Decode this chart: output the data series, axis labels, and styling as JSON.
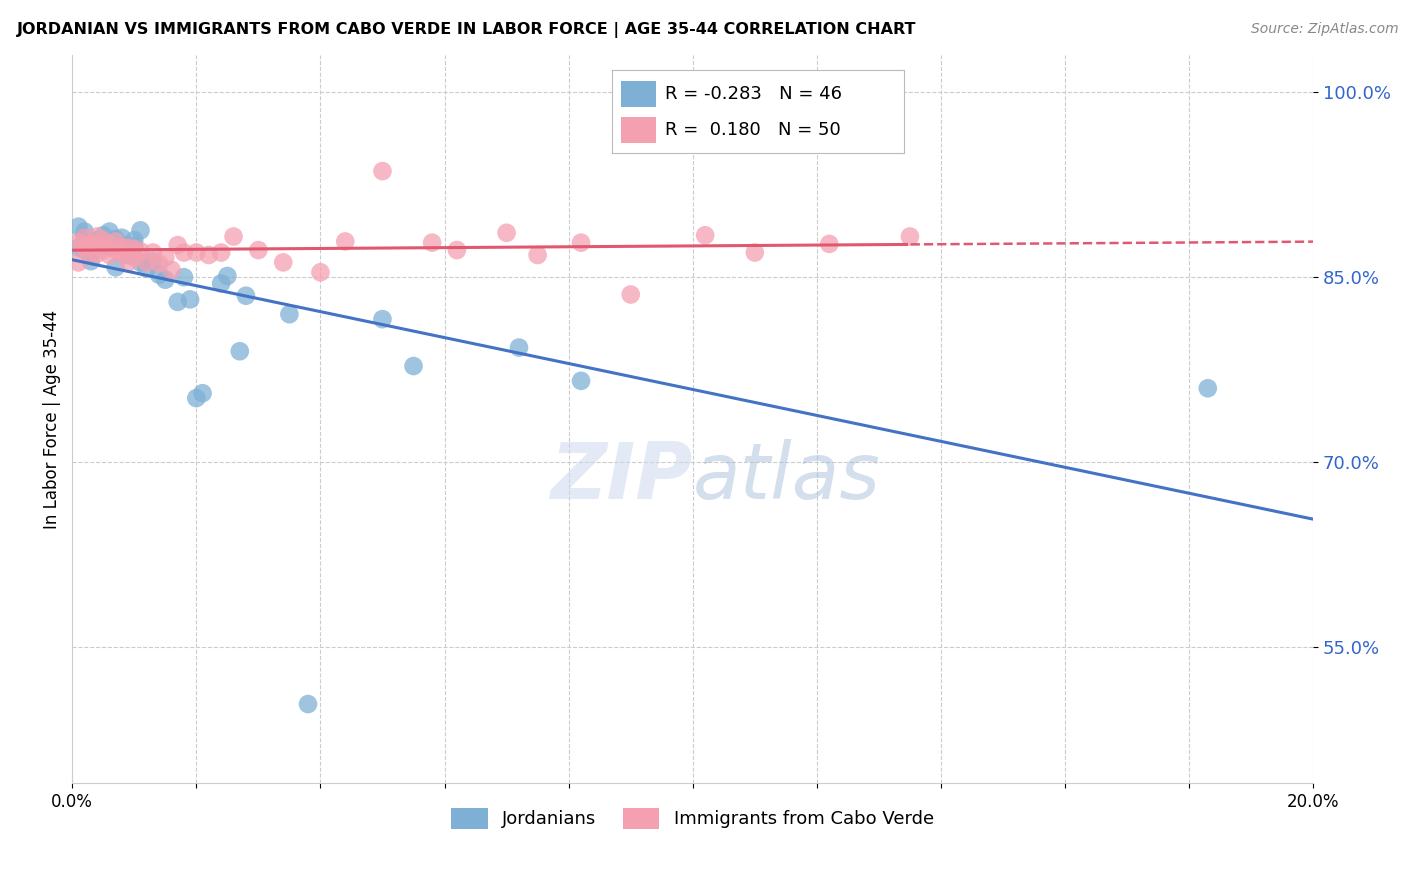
{
  "title": "JORDANIAN VS IMMIGRANTS FROM CABO VERDE IN LABOR FORCE | AGE 35-44 CORRELATION CHART",
  "source": "Source: ZipAtlas.com",
  "ylabel": "In Labor Force | Age 35-44",
  "xlabel": "",
  "xlim": [
    0.0,
    0.2
  ],
  "ylim": [
    0.44,
    1.03
  ],
  "yticks": [
    0.55,
    0.7,
    0.85,
    1.0
  ],
  "ytick_labels": [
    "55.0%",
    "70.0%",
    "85.0%",
    "100.0%"
  ],
  "xticks": [
    0.0,
    0.02,
    0.04,
    0.06,
    0.08,
    0.1,
    0.12,
    0.14,
    0.16,
    0.18,
    0.2
  ],
  "xtick_labels": [
    "0.0%",
    "",
    "",
    "",
    "",
    "",
    "",
    "",
    "",
    "",
    "20.0%"
  ],
  "legend_blue_r": "-0.283",
  "legend_blue_n": "46",
  "legend_pink_r": "0.180",
  "legend_pink_n": "50",
  "legend_label_blue": "Jordanians",
  "legend_label_pink": "Immigrants from Cabo Verde",
  "blue_color": "#7EB0D5",
  "pink_color": "#F4A0B0",
  "trend_blue_color": "#4472C4",
  "trend_pink_color": "#E05870",
  "watermark_zip": "ZIP",
  "watermark_atlas": "atlas",
  "blue_x": [
    0.001,
    0.001,
    0.002,
    0.002,
    0.002,
    0.003,
    0.003,
    0.003,
    0.003,
    0.004,
    0.004,
    0.005,
    0.005,
    0.005,
    0.006,
    0.006,
    0.007,
    0.007,
    0.008,
    0.008,
    0.009,
    0.009,
    0.01,
    0.01,
    0.011,
    0.011,
    0.012,
    0.013,
    0.014,
    0.015,
    0.017,
    0.018,
    0.019,
    0.02,
    0.021,
    0.024,
    0.025,
    0.027,
    0.028,
    0.035,
    0.038,
    0.05,
    0.055,
    0.072,
    0.082,
    0.183
  ],
  "blue_y": [
    0.874,
    0.891,
    0.872,
    0.882,
    0.887,
    0.863,
    0.878,
    0.87,
    0.879,
    0.88,
    0.876,
    0.877,
    0.884,
    0.876,
    0.887,
    0.875,
    0.858,
    0.881,
    0.882,
    0.876,
    0.872,
    0.868,
    0.88,
    0.875,
    0.888,
    0.862,
    0.857,
    0.863,
    0.852,
    0.848,
    0.83,
    0.85,
    0.832,
    0.752,
    0.756,
    0.845,
    0.851,
    0.79,
    0.835,
    0.82,
    0.504,
    0.816,
    0.778,
    0.793,
    0.766,
    0.76
  ],
  "pink_x": [
    0.001,
    0.001,
    0.002,
    0.002,
    0.002,
    0.003,
    0.003,
    0.003,
    0.004,
    0.004,
    0.004,
    0.005,
    0.005,
    0.006,
    0.006,
    0.007,
    0.007,
    0.008,
    0.008,
    0.009,
    0.009,
    0.01,
    0.01,
    0.011,
    0.012,
    0.013,
    0.014,
    0.015,
    0.016,
    0.017,
    0.018,
    0.02,
    0.022,
    0.024,
    0.026,
    0.03,
    0.034,
    0.04,
    0.044,
    0.05,
    0.058,
    0.062,
    0.07,
    0.075,
    0.082,
    0.09,
    0.102,
    0.11,
    0.122,
    0.135
  ],
  "pink_y": [
    0.878,
    0.862,
    0.875,
    0.882,
    0.874,
    0.87,
    0.876,
    0.877,
    0.869,
    0.876,
    0.883,
    0.88,
    0.872,
    0.868,
    0.876,
    0.879,
    0.872,
    0.869,
    0.874,
    0.862,
    0.874,
    0.866,
    0.873,
    0.871,
    0.862,
    0.87,
    0.861,
    0.866,
    0.856,
    0.876,
    0.87,
    0.87,
    0.868,
    0.87,
    0.883,
    0.872,
    0.862,
    0.854,
    0.879,
    0.936,
    0.878,
    0.872,
    0.886,
    0.868,
    0.878,
    0.836,
    0.884,
    0.87,
    0.877,
    0.883
  ]
}
